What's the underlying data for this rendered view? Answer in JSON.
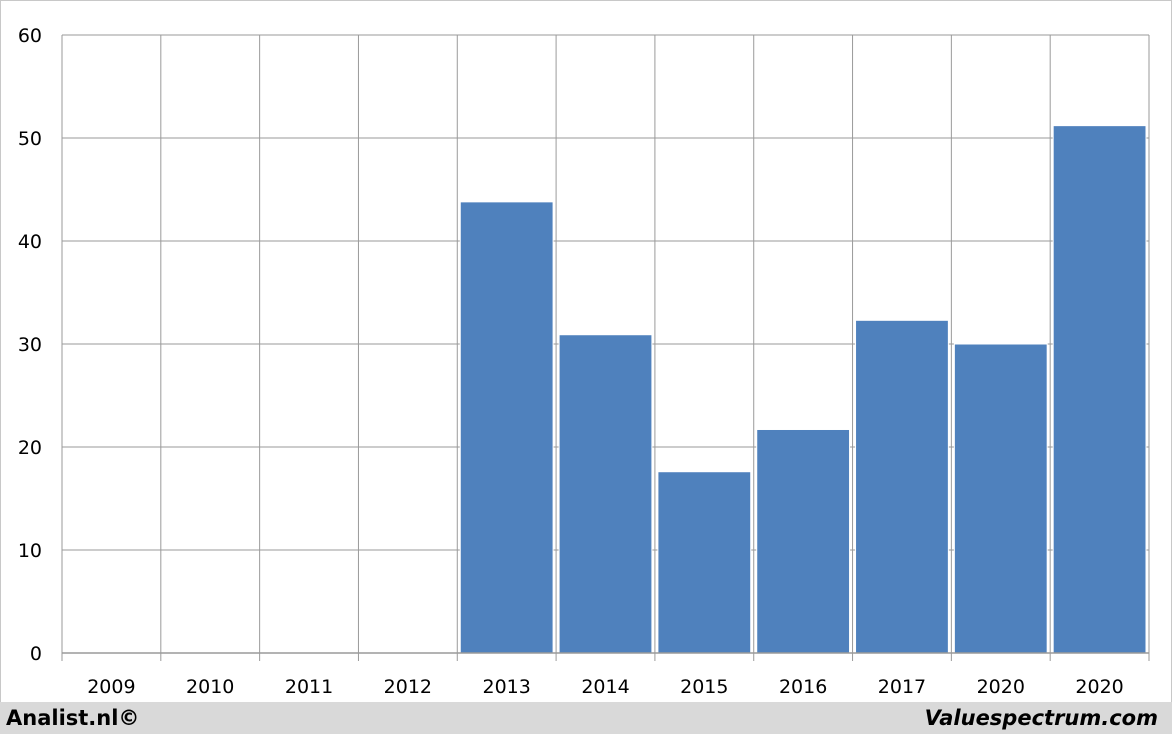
{
  "chart_data": {
    "type": "bar",
    "categories": [
      "2009",
      "2010",
      "2011",
      "2012",
      "2013",
      "2014",
      "2015",
      "2016",
      "2017",
      "2020",
      "2020"
    ],
    "values": [
      null,
      null,
      null,
      null,
      43.8,
      30.9,
      17.6,
      21.7,
      32.3,
      30.0,
      51.2
    ],
    "ylim": [
      0,
      60
    ],
    "yticks": [
      "0",
      "10",
      "20",
      "30",
      "40",
      "50",
      "60"
    ],
    "title": "",
    "xlabel": "",
    "ylabel": "",
    "grid": true,
    "bar_color": "#4f81bd",
    "grid_color": "#9a9a9a"
  },
  "footer": {
    "left_text": "Analist.nl©",
    "right_text": "Valuespectrum.com"
  }
}
